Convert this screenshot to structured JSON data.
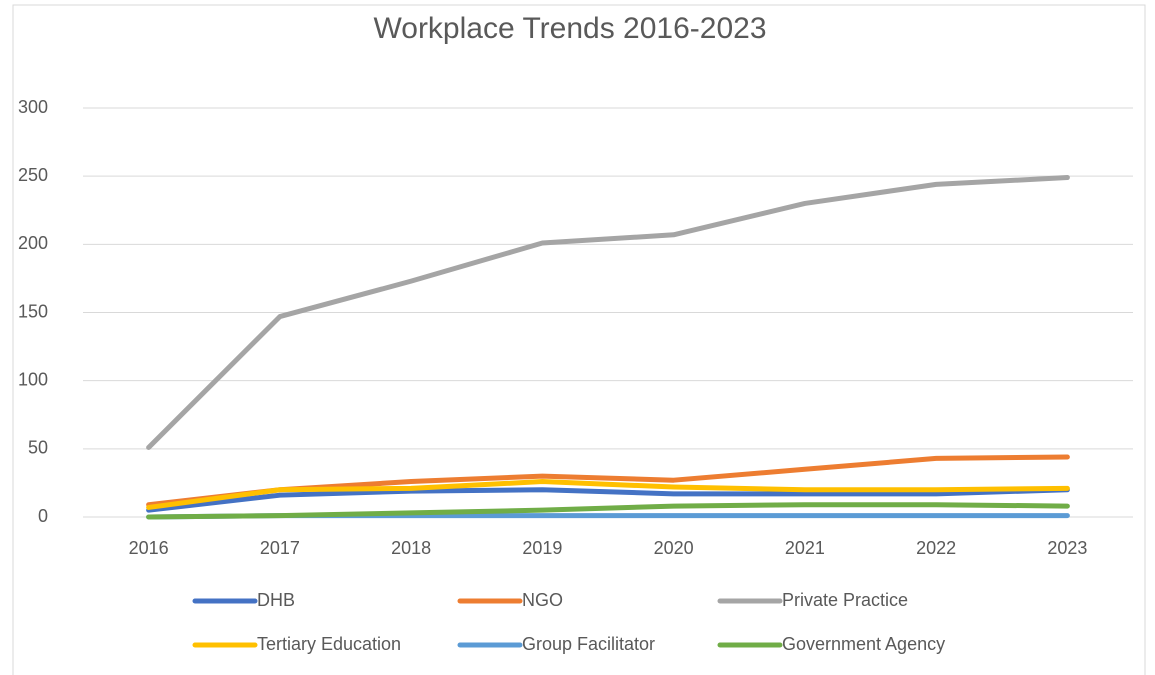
{
  "chart_data": {
    "type": "line",
    "title": "Workplace Trends 2016-2023",
    "categories": [
      "2016",
      "2017",
      "2018",
      "2019",
      "2020",
      "2021",
      "2022",
      "2023"
    ],
    "series": [
      {
        "name": "DHB",
        "color": "#4472c4",
        "values": [
          5,
          16,
          19,
          20,
          17,
          17,
          17,
          20
        ]
      },
      {
        "name": "NGO",
        "color": "#ed7d31",
        "values": [
          9,
          20,
          26,
          30,
          27,
          35,
          43,
          44
        ]
      },
      {
        "name": "Private Practice",
        "color": "#a5a5a5",
        "values": [
          51,
          147,
          173,
          201,
          207,
          230,
          244,
          249
        ]
      },
      {
        "name": "Tertiary Education",
        "color": "#ffc000",
        "values": [
          7,
          20,
          21,
          26,
          22,
          20,
          20,
          21
        ]
      },
      {
        "name": "Group Facilitator",
        "color": "#5b9bd5",
        "values": [
          0,
          1,
          1,
          1,
          1,
          1,
          1,
          1
        ]
      },
      {
        "name": "Government Agency",
        "color": "#70ad47",
        "values": [
          0,
          1,
          3,
          5,
          8,
          9,
          9,
          8
        ]
      }
    ],
    "ylim": [
      0,
      300
    ],
    "yticks": [
      0,
      50,
      100,
      150,
      200,
      250,
      300
    ],
    "grid": true,
    "legend": "bottom"
  }
}
